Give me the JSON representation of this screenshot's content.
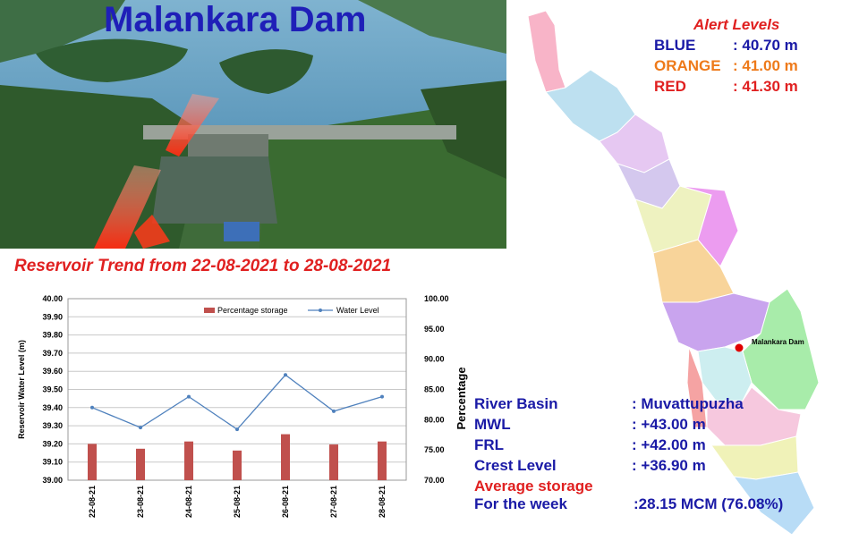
{
  "header": {
    "title": "Malankara Dam"
  },
  "alerts": {
    "title": "Alert Levels",
    "levels": [
      {
        "name": "BLUE",
        "value": ": 40.70 m",
        "color": "#1a1aa6"
      },
      {
        "name": "ORANGE",
        "value": ": 41.00 m",
        "color": "#ee7a1a"
      },
      {
        "name": "RED",
        "value": ": 41.30 m",
        "color": "#e02020"
      }
    ]
  },
  "map": {
    "label": "Malankara Dam",
    "marker_color": "#e00000"
  },
  "trend": {
    "title": "Reservoir Trend from 22-08-2021 to 28-08-2021"
  },
  "info": {
    "rows": [
      {
        "key": "River Basin",
        "value": ": Muvattupuzha"
      },
      {
        "key": "MWL",
        "value": ": +43.00 m"
      },
      {
        "key": "FRL",
        "value": ": +42.00 m"
      },
      {
        "key": "Crest Level",
        "value": ": +36.90 m"
      }
    ],
    "avg_label": "Average storage",
    "week_label": "For the week",
    "week_value": ":28.15 MCM (76.08%)"
  },
  "chart_data": {
    "type": "bar",
    "categories": [
      "22-08-21",
      "23-08-21",
      "24-08-21",
      "25-08-21",
      "26-08-21",
      "27-08-21",
      "28-08-21"
    ],
    "series": [
      {
        "name": "Percentage storage",
        "type": "bar",
        "axis": "right",
        "color": "#c0504d",
        "values": [
          76.0,
          75.2,
          76.4,
          74.9,
          77.6,
          75.9,
          76.4
        ]
      },
      {
        "name": "Water Level",
        "type": "line",
        "axis": "left",
        "color": "#4f81bd",
        "values": [
          39.4,
          39.29,
          39.46,
          39.28,
          39.58,
          39.38,
          39.46
        ]
      }
    ],
    "ylabel": "Reservoir Water Level (m)",
    "y2label": "Percentage",
    "ylim": [
      39.0,
      40.0
    ],
    "yticks": [
      "39.00",
      "39.10",
      "39.20",
      "39.30",
      "39.40",
      "39.50",
      "39.60",
      "39.70",
      "39.80",
      "39.90",
      "40.00"
    ],
    "y2lim": [
      70.0,
      100.0
    ],
    "y2ticks": [
      "70.00",
      "75.00",
      "80.00",
      "85.00",
      "90.00",
      "95.00",
      "100.00"
    ],
    "grid": true,
    "legend": "top-right"
  }
}
